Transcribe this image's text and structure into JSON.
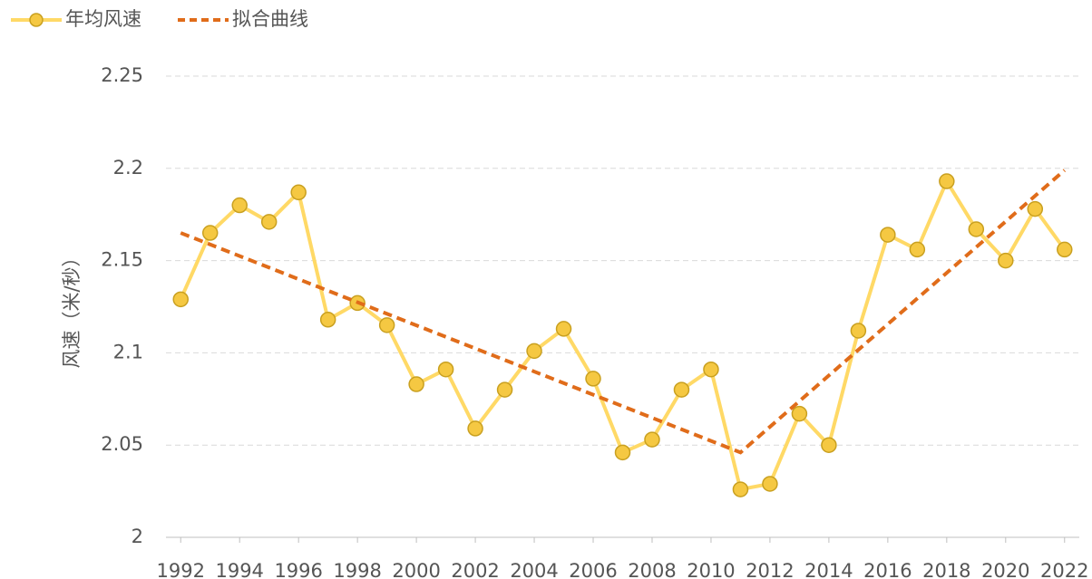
{
  "chart_data": {
    "type": "line",
    "ylabel": "风速（米/秒）",
    "x": [
      1992,
      1993,
      1994,
      1995,
      1996,
      1997,
      1998,
      1999,
      2000,
      2001,
      2002,
      2003,
      2004,
      2005,
      2006,
      2007,
      2008,
      2009,
      2010,
      2011,
      2012,
      2013,
      2014,
      2015,
      2016,
      2017,
      2018,
      2019,
      2020,
      2021,
      2022
    ],
    "series": [
      {
        "name": "年均风速",
        "color": "#ffd966",
        "marker_color": "#f5c842",
        "style": "solid",
        "markers": true,
        "values": [
          2.129,
          2.165,
          2.18,
          2.171,
          2.187,
          2.118,
          2.127,
          2.115,
          2.083,
          2.091,
          2.059,
          2.08,
          2.101,
          2.113,
          2.086,
          2.046,
          2.053,
          2.08,
          2.091,
          2.026,
          2.029,
          2.067,
          2.05,
          2.112,
          2.164,
          2.156,
          2.193,
          2.167,
          2.15,
          2.178,
          2.156
        ]
      },
      {
        "name": "拟合曲线",
        "color": "#e06c1a",
        "style": "dashed",
        "markers": false,
        "x": [
          1992,
          2011,
          2022
        ],
        "values": [
          2.165,
          2.046,
          2.199
        ]
      }
    ],
    "xlim": [
      1991.5,
      2022.5
    ],
    "xticks": [
      1992,
      1994,
      1996,
      1998,
      2000,
      2002,
      2004,
      2006,
      2008,
      2010,
      2012,
      2014,
      2016,
      2018,
      2020,
      2022
    ],
    "ylim": [
      2,
      2.25
    ],
    "yticks": [
      2,
      2.05,
      2.1,
      2.15,
      2.2,
      2.25
    ],
    "grid": true,
    "legend": "top-left"
  }
}
